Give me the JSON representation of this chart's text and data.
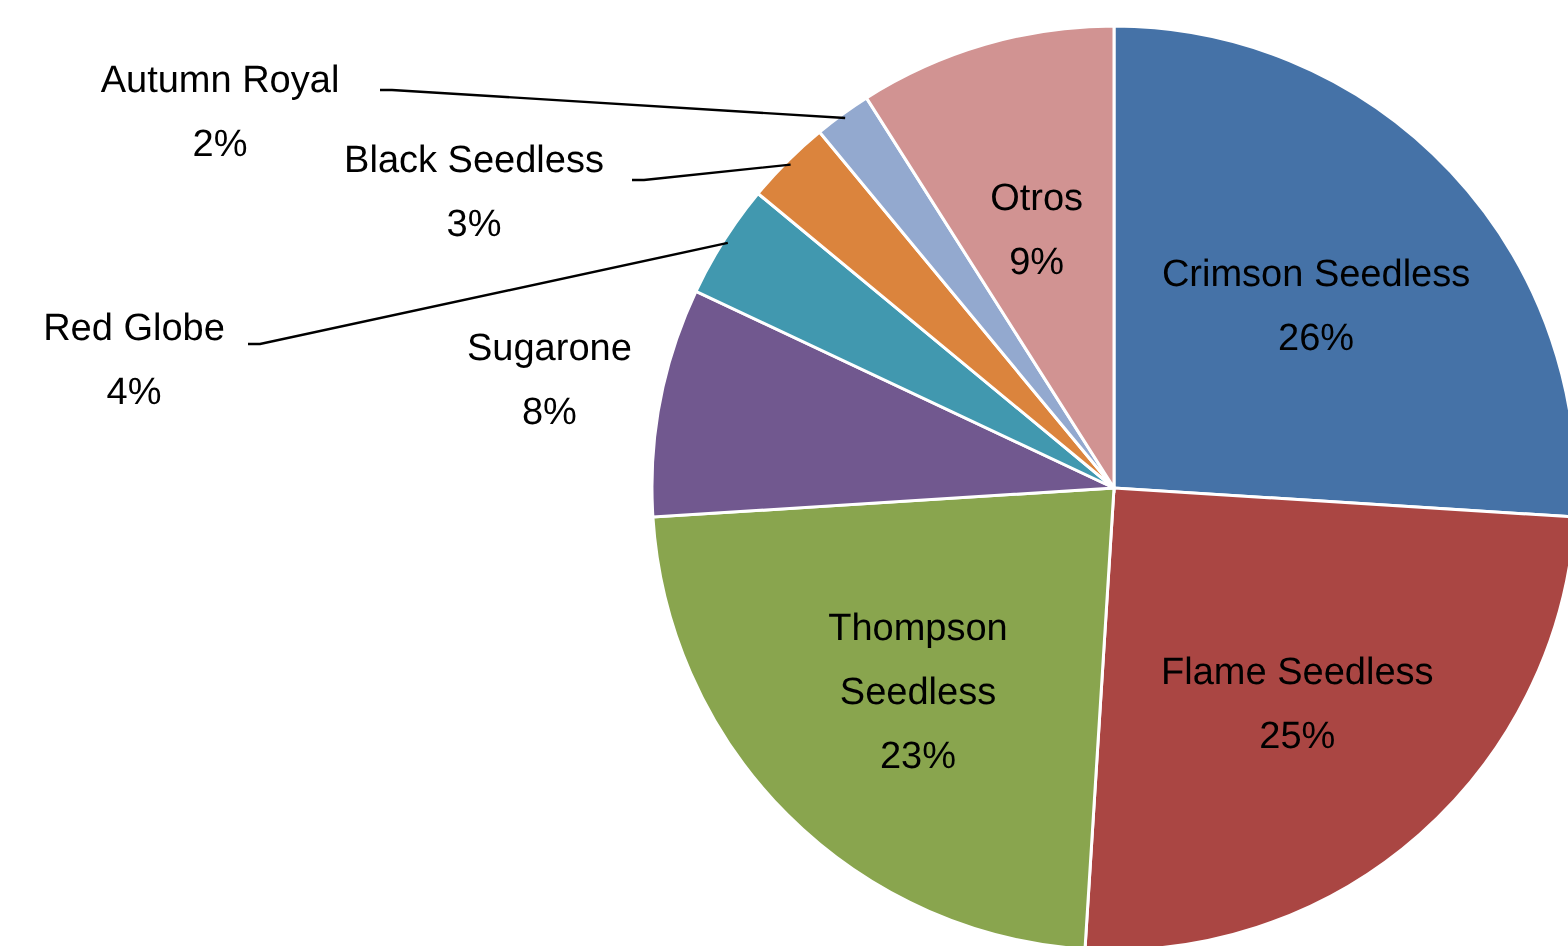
{
  "chart_data": {
    "type": "pie",
    "categories": [
      "Crimson Seedless",
      "Flame Seedless",
      "Thompson Seedless",
      "Sugarone",
      "Red Globe",
      "Black Seedless",
      "Autumn Royal",
      "Otros"
    ],
    "values": [
      26,
      25,
      23,
      8,
      4,
      3,
      2,
      9
    ],
    "colors": [
      "#4572a7",
      "#aa4643",
      "#89a54e",
      "#71588f",
      "#4198af",
      "#db843d",
      "#93a9cf",
      "#d19392"
    ],
    "value_labels": [
      "26%",
      "25%",
      "23%",
      "8%",
      "4%",
      "3%",
      "2%",
      "9%"
    ]
  }
}
